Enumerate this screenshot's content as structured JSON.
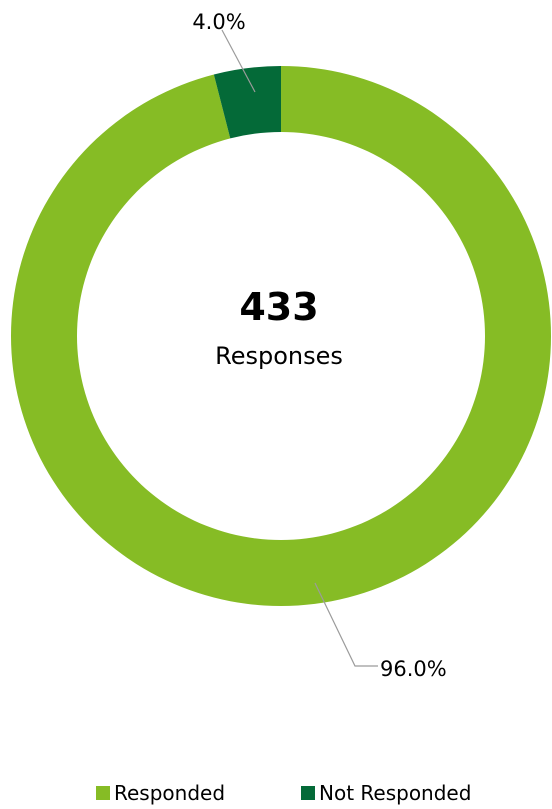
{
  "chart_data": {
    "type": "pie",
    "variant": "donut",
    "categories": [
      "Responded",
      "Not Responded"
    ],
    "values": [
      96.0,
      4.0
    ],
    "data_labels": [
      "96.0%",
      "4.0%"
    ],
    "colors": [
      "#86bc25",
      "#046a38"
    ],
    "center_value": "433",
    "center_label": "Responses",
    "legend_position": "bottom"
  }
}
